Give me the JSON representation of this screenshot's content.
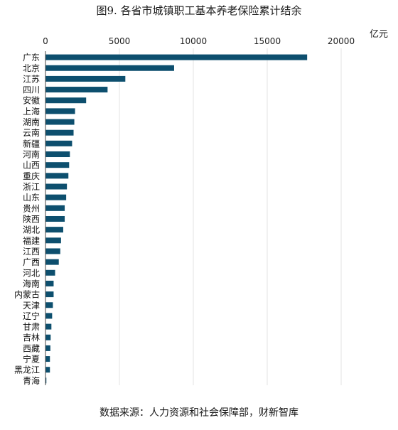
{
  "chart_data": {
    "type": "bar",
    "orientation": "horizontal",
    "title": "图9. 各省市城镇职工基本养老保险累计结余",
    "source": "数据来源：人力资源和社会保障部，财新智库",
    "unit": "亿元",
    "xlim": [
      0,
      22000
    ],
    "xticks": [
      0,
      5000,
      10000,
      15000,
      20000
    ],
    "x_axis_position": "top",
    "grid": "vertical",
    "bar_color": "#0d4f6e",
    "categories": [
      "广东",
      "北京",
      "江苏",
      "四川",
      "安徽",
      "上海",
      "湖南",
      "云南",
      "新疆",
      "河南",
      "山西",
      "重庆",
      "浙江",
      "山东",
      "贵州",
      "陕西",
      "湖北",
      "福建",
      "江西",
      "广西",
      "河北",
      "海南",
      "内蒙古",
      "天津",
      "辽宁",
      "甘肃",
      "吉林",
      "西藏",
      "宁夏",
      "黑龙江",
      "青海"
    ],
    "values": [
      17700,
      8700,
      5400,
      4200,
      2750,
      2000,
      1950,
      1900,
      1800,
      1650,
      1600,
      1550,
      1450,
      1400,
      1300,
      1300,
      1200,
      1050,
      1000,
      900,
      650,
      550,
      550,
      500,
      450,
      400,
      350,
      330,
      300,
      300,
      60
    ]
  }
}
